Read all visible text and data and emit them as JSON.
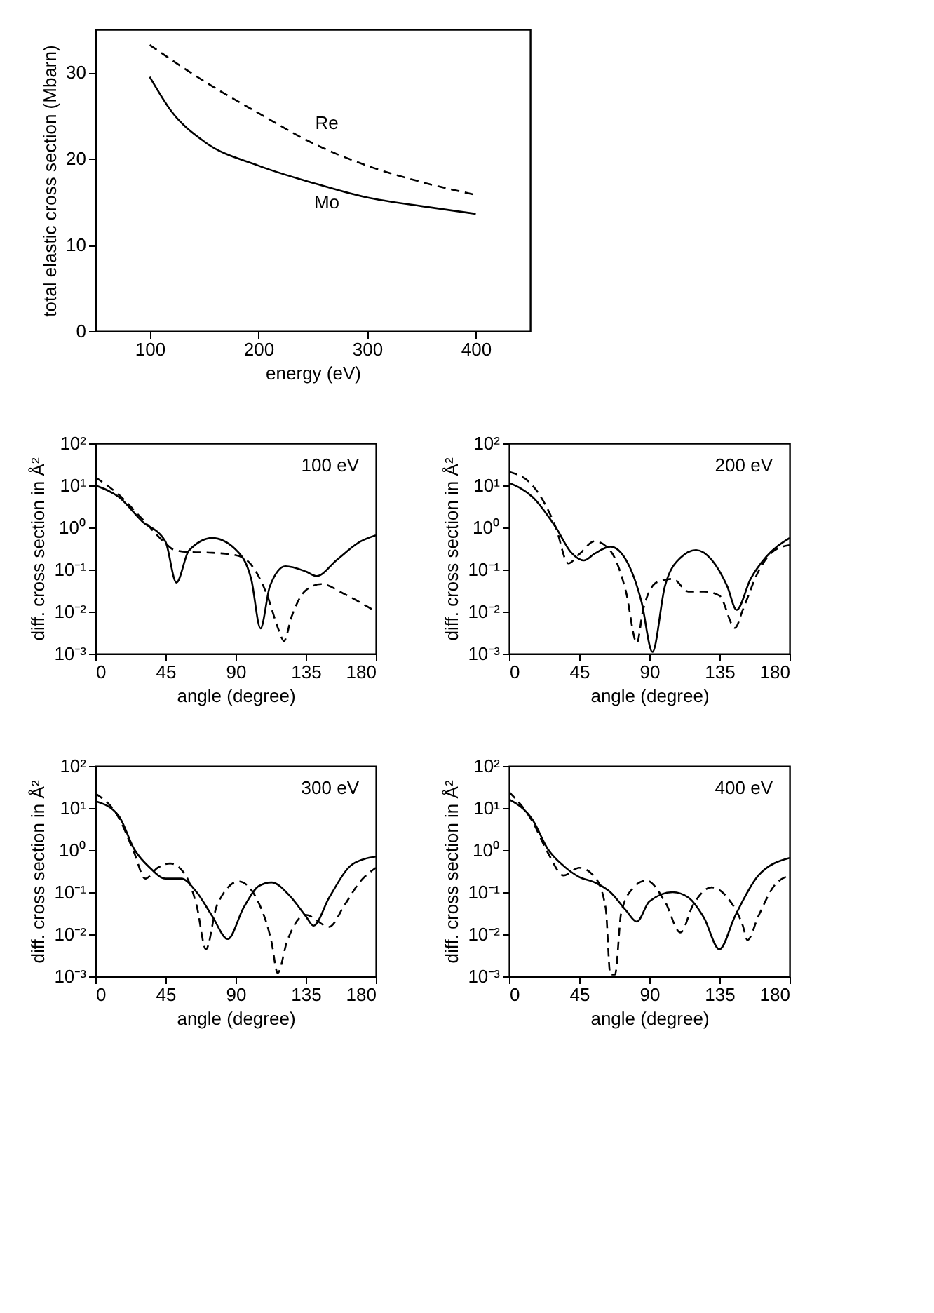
{
  "chart_data": [
    {
      "type": "line",
      "xlabel": "energy (eV)",
      "ylabel": "total elastic cross section (Mbarn)",
      "xlim": [
        50,
        450
      ],
      "xticks": [
        100,
        200,
        300,
        400
      ],
      "ylim": [
        0,
        35
      ],
      "yticks": [
        0,
        10,
        20,
        30
      ],
      "series": [
        {
          "name": "Re",
          "color": "#000000",
          "line_style": "dashed",
          "x": [
            100,
            150,
            200,
            250,
            300,
            350,
            400
          ],
          "values": [
            33.2,
            29,
            25.3,
            21.8,
            19.2,
            17.3,
            15.8
          ]
        },
        {
          "name": "Mo",
          "color": "#000000",
          "line_style": "solid",
          "x": [
            100,
            120,
            150,
            200,
            250,
            300,
            350,
            400
          ],
          "values": [
            29.5,
            25.5,
            22,
            19.2,
            17.2,
            15.5,
            14.5,
            13.6
          ]
        }
      ]
    },
    {
      "type": "line",
      "log": true,
      "xlabel": "angle (degree)",
      "ylabel": "diff. cross section in Å²",
      "annotations": [
        "100 eV"
      ],
      "xlim": [
        0,
        180
      ],
      "xticks": [
        0,
        45,
        90,
        135,
        180
      ],
      "ylim": [
        0.001,
        100
      ],
      "yticks": [
        {
          "value": 0.001,
          "label": "10⁻³"
        },
        {
          "value": 0.01,
          "label": "10⁻²"
        },
        {
          "value": 0.1,
          "label": "10⁻¹"
        },
        {
          "value": 1,
          "label": "10⁰"
        },
        {
          "value": 10,
          "label": "10¹"
        },
        {
          "value": 100,
          "label": "10²"
        }
      ],
      "series": [
        {
          "color": "#000000",
          "line_style": "solid",
          "x": [
            0,
            15,
            30,
            45,
            52,
            60,
            75,
            90,
            100,
            106,
            112,
            122,
            135,
            142,
            155,
            170,
            180
          ],
          "values": [
            10,
            5.3,
            1.4,
            0.46,
            0.049,
            0.28,
            0.56,
            0.3,
            0.06,
            0.004,
            0.04,
            0.12,
            0.09,
            0.07,
            0.17,
            0.46,
            0.65
          ]
        },
        {
          "color": "#000000",
          "line_style": "dashed",
          "x": [
            0,
            15,
            30,
            45,
            50,
            60,
            75,
            90,
            100,
            110,
            118,
            121,
            126,
            135,
            145,
            160,
            180
          ],
          "values": [
            15.6,
            6,
            1.6,
            0.42,
            0.3,
            0.26,
            0.25,
            0.22,
            0.13,
            0.026,
            0.0034,
            0.002,
            0.0077,
            0.032,
            0.045,
            0.026,
            0.01
          ]
        }
      ]
    },
    {
      "type": "line",
      "log": true,
      "xlabel": "angle (degree)",
      "ylabel": "diff. cross section in Å²",
      "annotations": [
        "200 eV"
      ],
      "xlim": [
        0,
        180
      ],
      "xticks": [
        0,
        45,
        90,
        135,
        180
      ],
      "ylim": [
        0.001,
        100
      ],
      "yticks": [
        {
          "value": 0.001,
          "label": "10⁻³"
        },
        {
          "value": 0.01,
          "label": "10⁻²"
        },
        {
          "value": 0.1,
          "label": "10⁻¹"
        },
        {
          "value": 1,
          "label": "10⁰"
        },
        {
          "value": 10,
          "label": "10¹"
        },
        {
          "value": 100,
          "label": "10²"
        }
      ],
      "series": [
        {
          "color": "#000000",
          "line_style": "solid",
          "x": [
            0,
            15,
            30,
            40,
            48,
            55,
            65,
            75,
            85,
            92,
            100,
            110,
            120,
            130,
            140,
            146,
            155,
            165,
            180
          ],
          "values": [
            11.5,
            5.3,
            1.0,
            0.25,
            0.165,
            0.24,
            0.35,
            0.17,
            0.017,
            0.0011,
            0.04,
            0.19,
            0.29,
            0.17,
            0.04,
            0.011,
            0.06,
            0.2,
            0.56
          ]
        },
        {
          "color": "#000000",
          "line_style": "dashed",
          "x": [
            0,
            15,
            30,
            38,
            45,
            55,
            65,
            75,
            82,
            86,
            95,
            105,
            115,
            125,
            135,
            145,
            150,
            160,
            170,
            180
          ],
          "values": [
            21,
            10,
            1.0,
            0.14,
            0.23,
            0.47,
            0.28,
            0.03,
            0.0018,
            0.011,
            0.05,
            0.06,
            0.03,
            0.03,
            0.024,
            0.0041,
            0.011,
            0.09,
            0.28,
            0.38
          ]
        }
      ]
    },
    {
      "type": "line",
      "log": true,
      "xlabel": "angle (degree)",
      "ylabel": "diff. cross section in Å²",
      "annotations": [
        "300 eV"
      ],
      "xlim": [
        0,
        180
      ],
      "xticks": [
        0,
        45,
        90,
        135,
        180
      ],
      "ylim": [
        0.001,
        100
      ],
      "yticks": [
        {
          "value": 0.001,
          "label": "10⁻³"
        },
        {
          "value": 0.01,
          "label": "10⁻²"
        },
        {
          "value": 0.1,
          "label": "10⁻¹"
        },
        {
          "value": 1,
          "label": "10⁰"
        },
        {
          "value": 10,
          "label": "10¹"
        },
        {
          "value": 100,
          "label": "10²"
        }
      ],
      "series": [
        {
          "color": "#000000",
          "line_style": "solid",
          "x": [
            0,
            15,
            25,
            35,
            45,
            55,
            65,
            75,
            85,
            95,
            105,
            113,
            125,
            135,
            140,
            150,
            165,
            180
          ],
          "values": [
            14.6,
            6.5,
            1.04,
            0.38,
            0.21,
            0.21,
            0.1,
            0.027,
            0.0077,
            0.042,
            0.14,
            0.17,
            0.08,
            0.027,
            0.016,
            0.074,
            0.46,
            0.7
          ]
        },
        {
          "color": "#000000",
          "line_style": "dashed",
          "x": [
            0,
            15,
            25,
            32,
            40,
            48,
            58,
            65,
            71,
            78,
            92,
            105,
            113,
            117,
            123,
            135,
            150,
            160,
            170,
            180
          ],
          "values": [
            22,
            5.9,
            0.85,
            0.21,
            0.38,
            0.48,
            0.25,
            0.048,
            0.0044,
            0.048,
            0.18,
            0.054,
            0.0067,
            0.0012,
            0.0067,
            0.029,
            0.015,
            0.05,
            0.18,
            0.38
          ]
        }
      ]
    },
    {
      "type": "line",
      "log": true,
      "xlabel": "angle (degree)",
      "ylabel": "diff. cross section in Å²",
      "annotations": [
        "400 eV"
      ],
      "xlim": [
        0,
        180
      ],
      "xticks": [
        0,
        45,
        90,
        135,
        180
      ],
      "ylim": [
        0.001,
        100
      ],
      "yticks": [
        {
          "value": 0.001,
          "label": "10⁻³"
        },
        {
          "value": 0.01,
          "label": "10⁻²"
        },
        {
          "value": 0.1,
          "label": "10⁻¹"
        },
        {
          "value": 1,
          "label": "10⁰"
        },
        {
          "value": 10,
          "label": "10¹"
        },
        {
          "value": 100,
          "label": "10²"
        }
      ],
      "series": [
        {
          "color": "#000000",
          "line_style": "solid",
          "x": [
            0,
            15,
            25,
            35,
            45,
            55,
            65,
            75,
            82,
            90,
            105,
            115,
            125,
            135,
            145,
            160,
            180
          ],
          "values": [
            16,
            5.3,
            1.04,
            0.42,
            0.23,
            0.17,
            0.1,
            0.037,
            0.02,
            0.06,
            0.1,
            0.075,
            0.025,
            0.0044,
            0.027,
            0.25,
            0.65
          ]
        },
        {
          "color": "#000000",
          "line_style": "dashed",
          "x": [
            0,
            15,
            25,
            35,
            45,
            55,
            62,
            65,
            68,
            72,
            80,
            88,
            100,
            110,
            118,
            130,
            140,
            150,
            153,
            160,
            170,
            180
          ],
          "values": [
            24,
            4.8,
            0.85,
            0.25,
            0.38,
            0.23,
            0.042,
            0.0011,
            0.0011,
            0.033,
            0.13,
            0.19,
            0.06,
            0.011,
            0.049,
            0.13,
            0.075,
            0.016,
            0.0073,
            0.027,
            0.14,
            0.25
          ]
        }
      ]
    }
  ]
}
